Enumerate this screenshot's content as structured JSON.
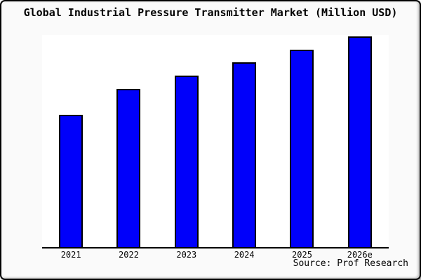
{
  "chart_data": {
    "type": "bar",
    "title": "Global Industrial Pressure Transmitter Market (Million USD)",
    "categories": [
      "2021",
      "2022",
      "2023",
      "2024",
      "2025",
      "2026e"
    ],
    "values": [
      189,
      226,
      245,
      264,
      282,
      301
    ],
    "xlabel": "",
    "ylabel": "",
    "ylim": [
      0,
      303
    ],
    "y_axis_tick_labels_visible": false,
    "grid": false,
    "legend_position": "none",
    "bar_color": "#0000FA",
    "bar_border_color": "#000000",
    "source_note": "Source: Prof Research"
  },
  "colors": {
    "figure_background": "#FAFAFA",
    "plot_background": "#FFFFFF",
    "frame_border": "#000000",
    "text": "#000000"
  }
}
